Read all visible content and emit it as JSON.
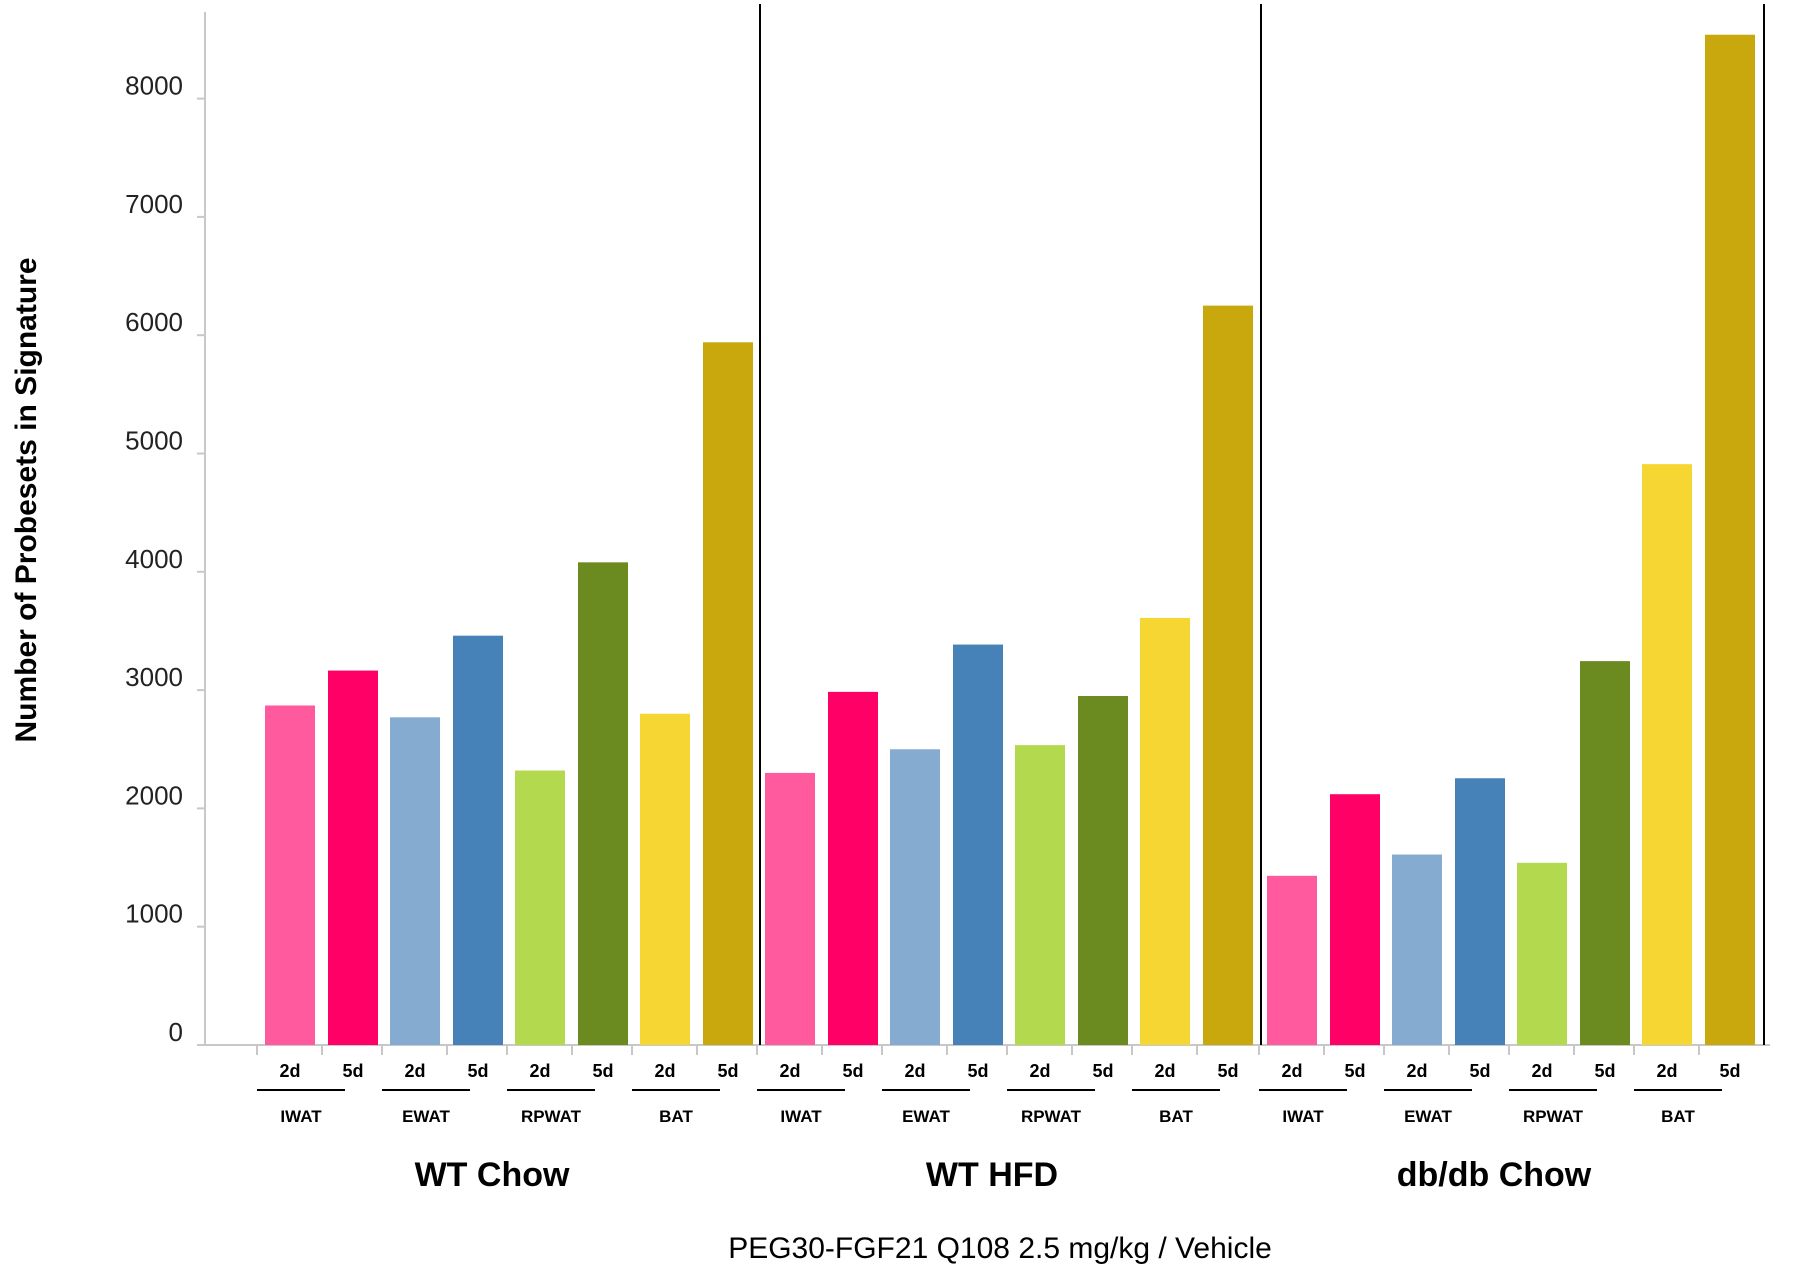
{
  "chart_data": {
    "type": "bar",
    "ylabel": "Number of Probesets in Signature",
    "xlabel": "PEG30-FGF21 Q108 2.5 mg/kg / Vehicle",
    "ylim": [
      0,
      8700
    ],
    "yticks": [
      0,
      1000,
      2000,
      3000,
      4000,
      5000,
      6000,
      7000,
      8000
    ],
    "grid": false,
    "timepoints": [
      "2d",
      "5d"
    ],
    "tissues": [
      "IWAT",
      "EWAT",
      "RPWAT",
      "BAT"
    ],
    "tissue_colors": {
      "IWAT": [
        "#ff5a9e",
        "#ff0066"
      ],
      "EWAT": [
        "#85abd1",
        "#4682b8"
      ],
      "RPWAT": [
        "#b3d94f",
        "#6b8b21"
      ],
      "BAT": [
        "#f6d632",
        "#c9a80e"
      ]
    },
    "panels": [
      {
        "name": "WT Chow",
        "groups": [
          {
            "tissue": "IWAT",
            "values": [
              2870,
              3165
            ]
          },
          {
            "tissue": "EWAT",
            "values": [
              2770,
              3460
            ]
          },
          {
            "tissue": "RPWAT",
            "values": [
              2320,
              4080
            ]
          },
          {
            "tissue": "BAT",
            "values": [
              2800,
              5940
            ]
          }
        ]
      },
      {
        "name": "WT HFD",
        "groups": [
          {
            "tissue": "IWAT",
            "values": [
              2300,
              2985
            ]
          },
          {
            "tissue": "EWAT",
            "values": [
              2500,
              3385
            ]
          },
          {
            "tissue": "RPWAT",
            "values": [
              2535,
              2950
            ]
          },
          {
            "tissue": "BAT",
            "values": [
              3610,
              6250
            ]
          }
        ]
      },
      {
        "name": "db/db Chow",
        "groups": [
          {
            "tissue": "IWAT",
            "values": [
              1430,
              2120
            ]
          },
          {
            "tissue": "EWAT",
            "values": [
              1610,
              2255
            ]
          },
          {
            "tissue": "RPWAT",
            "values": [
              1540,
              3245
            ]
          },
          {
            "tissue": "BAT",
            "values": [
              4910,
              8540
            ]
          }
        ]
      }
    ]
  }
}
